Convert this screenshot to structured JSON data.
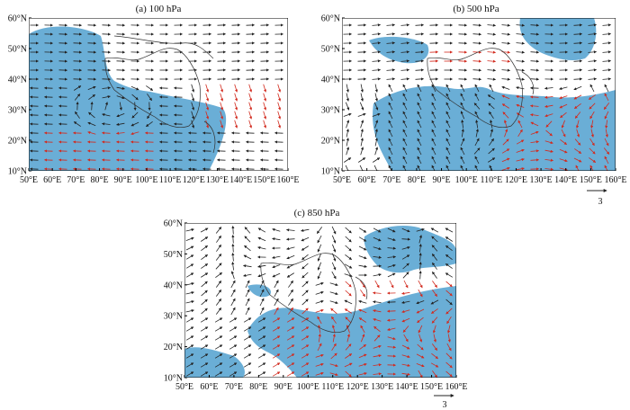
{
  "figure": {
    "panels": [
      {
        "id": "a",
        "title": "(a) 100 hPa",
        "lon_range": [
          50,
          160
        ],
        "lat_range": [
          10,
          60
        ],
        "x_ticks": [
          "50°E",
          "60°E",
          "70°E",
          "80°E",
          "90°E",
          "100°E",
          "110°E",
          "120°E",
          "130°E",
          "140°E",
          "150°E",
          "160°E"
        ],
        "y_ticks": [
          "60°N",
          "50°N",
          "40°N",
          "30°N",
          "20°N",
          "10°N"
        ],
        "shading_color": "#6aaed6",
        "flow": "westerly jet north, easterly flow south, anticyclone over Tibetan Plateau",
        "reference_vector": null
      },
      {
        "id": "b",
        "title": "(b) 500 hPa",
        "lon_range": [
          50,
          160
        ],
        "lat_range": [
          10,
          60
        ],
        "x_ticks": [
          "50°E",
          "60°E",
          "70°E",
          "80°E",
          "90°E",
          "100°E",
          "110°E",
          "120°E",
          "130°E",
          "140°E",
          "150°E",
          "160°E"
        ],
        "y_ticks": [
          "60°N",
          "50°N",
          "40°N",
          "30°N",
          "20°N",
          "10°N"
        ],
        "shading_color": "#6aaed6",
        "flow": "westerlies, subtropical high over western Pacific",
        "reference_vector": "3"
      },
      {
        "id": "c",
        "title": "(c) 850 hPa",
        "lon_range": [
          50,
          160
        ],
        "lat_range": [
          10,
          60
        ],
        "x_ticks": [
          "50°E",
          "60°E",
          "70°E",
          "80°E",
          "90°E",
          "100°E",
          "110°E",
          "120°E",
          "130°E",
          "140°E",
          "150°E",
          "160°E"
        ],
        "y_ticks": [
          "60°N",
          "50°N",
          "40°N",
          "30°N",
          "20°N",
          "10°N"
        ],
        "shading_color": "#6aaed6",
        "flow": "southwest monsoon, western Pacific anticyclone",
        "reference_vector": "3"
      }
    ],
    "colors": {
      "shading": "#6aaed6",
      "streamline": "#222222",
      "significant_streamline": "#d22a1e",
      "boundary": "#333333",
      "frame": "#000000"
    }
  }
}
